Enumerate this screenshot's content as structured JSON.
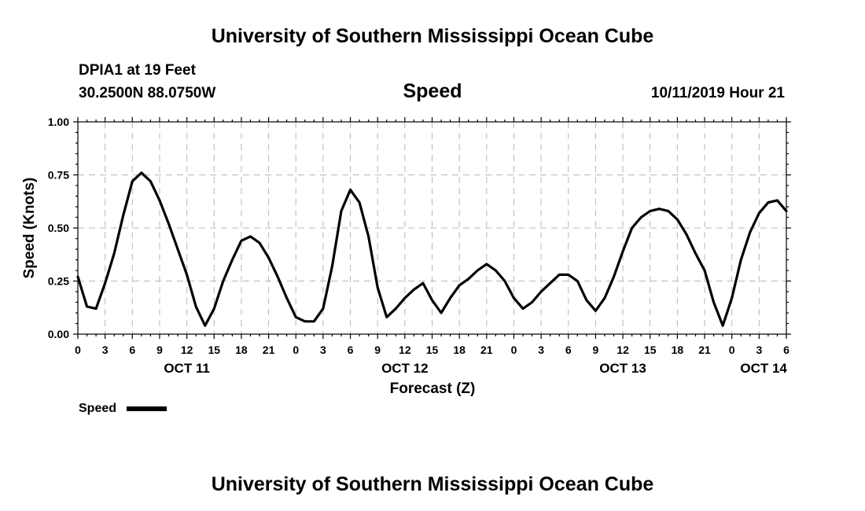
{
  "page": {
    "title_top": "University of Southern Mississippi Ocean Cube",
    "title_bottom": "University of Southern Mississippi Ocean Cube",
    "station": "DPIA1 at 19 Feet",
    "coords": "30.2500N 88.0750W",
    "timestamp": "10/11/2019 Hour 21"
  },
  "chart_data": {
    "type": "line",
    "title": "Speed",
    "xlabel": "Forecast (Z)",
    "ylabel": "Speed (Knots)",
    "ylim": [
      0,
      1
    ],
    "y_ticks": [
      "0.00",
      "0.25",
      "0.50",
      "0.75",
      "1.00"
    ],
    "y_tick_values": [
      0,
      0.25,
      0.5,
      0.75,
      1.0
    ],
    "xlim": [
      0,
      78
    ],
    "x_tick_labels": [
      "0",
      "3",
      "6",
      "9",
      "12",
      "15",
      "18",
      "21",
      "0",
      "3",
      "6",
      "9",
      "12",
      "15",
      "18",
      "21",
      "0",
      "3",
      "6",
      "9",
      "12",
      "15",
      "18",
      "21",
      "0",
      "3",
      "6"
    ],
    "day_labels": [
      {
        "label": "OCT 11",
        "hour": 12
      },
      {
        "label": "OCT 12",
        "hour": 36
      },
      {
        "label": "OCT 13",
        "hour": 60
      },
      {
        "label": "OCT 14",
        "hour": 75.5
      }
    ],
    "grid": true,
    "legend": "bottom-left",
    "series": [
      {
        "name": "Speed",
        "color": "#000000",
        "x": [
          0,
          1,
          2,
          3,
          4,
          5,
          6,
          7,
          8,
          9,
          10,
          11,
          12,
          13,
          14,
          15,
          16,
          17,
          18,
          19,
          20,
          21,
          22,
          23,
          24,
          25,
          26,
          27,
          28,
          29,
          30,
          31,
          32,
          33,
          34,
          35,
          36,
          37,
          38,
          39,
          40,
          41,
          42,
          43,
          44,
          45,
          46,
          47,
          48,
          49,
          50,
          51,
          52,
          53,
          54,
          55,
          56,
          57,
          58,
          59,
          60,
          61,
          62,
          63,
          64,
          65,
          66,
          67,
          68,
          69,
          70,
          71,
          72,
          73,
          74,
          75,
          76,
          77,
          78
        ],
        "y": [
          0.27,
          0.13,
          0.12,
          0.24,
          0.38,
          0.56,
          0.72,
          0.76,
          0.72,
          0.63,
          0.52,
          0.4,
          0.28,
          0.13,
          0.04,
          0.12,
          0.25,
          0.35,
          0.44,
          0.46,
          0.43,
          0.36,
          0.27,
          0.17,
          0.08,
          0.06,
          0.06,
          0.12,
          0.32,
          0.58,
          0.68,
          0.62,
          0.46,
          0.22,
          0.08,
          0.12,
          0.17,
          0.21,
          0.24,
          0.16,
          0.1,
          0.17,
          0.23,
          0.26,
          0.3,
          0.33,
          0.3,
          0.25,
          0.17,
          0.12,
          0.15,
          0.2,
          0.24,
          0.28,
          0.28,
          0.25,
          0.16,
          0.11,
          0.17,
          0.27,
          0.39,
          0.5,
          0.55,
          0.58,
          0.59,
          0.58,
          0.54,
          0.47,
          0.38,
          0.3,
          0.15,
          0.04,
          0.17,
          0.35,
          0.48,
          0.57,
          0.62,
          0.63,
          0.58
        ]
      }
    ]
  }
}
